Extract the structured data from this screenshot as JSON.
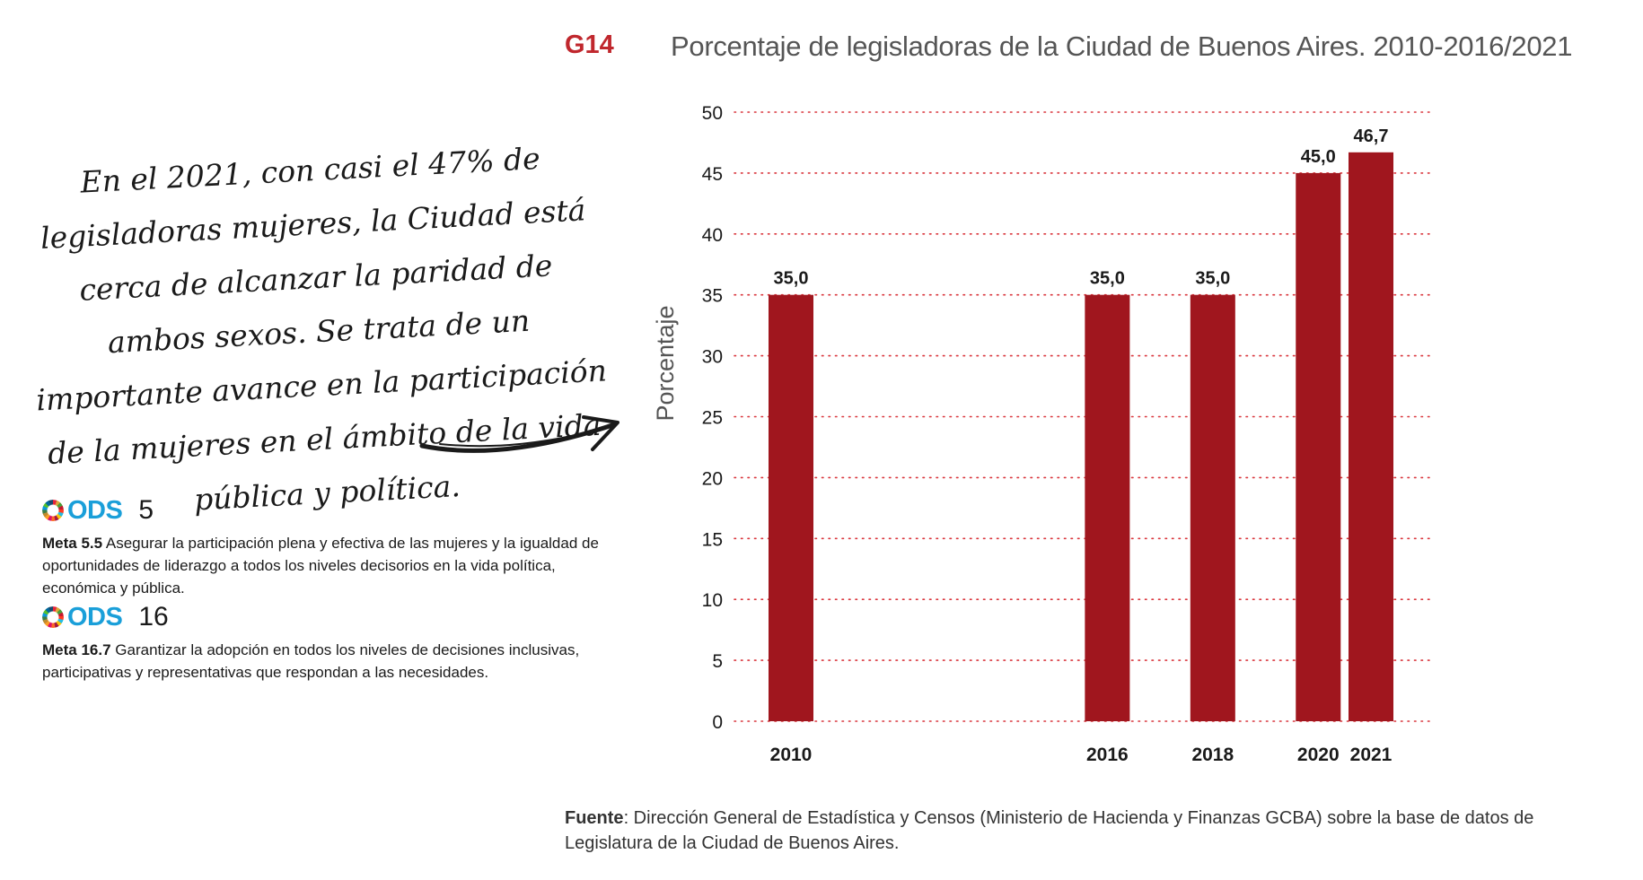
{
  "header": {
    "code": "G14",
    "title": "Porcentaje de legisladoras de la Ciudad de Buenos Aires. 2010-2016/2021"
  },
  "quote": "En el 2021, con casi el 47% de legisladoras mujeres, la Ciudad está cerca de alcanzar la paridad de ambos sexos. Se trata de un importante avance en la participación de la mujeres en el ámbito de la vida pública y política.",
  "ods": [
    {
      "label": "ODS",
      "number": "5",
      "meta_title": "Meta 5.5",
      "meta_text": "Asegurar la participación plena y efectiva de las mujeres y la igualdad de oportunidades de liderazgo a todos los niveles decisorios en la vida política, económica y pública."
    },
    {
      "label": "ODS",
      "number": "16",
      "meta_title": "Meta 16.7",
      "meta_text": "Garantizar la adopción en todos los niveles de decisiones inclusivas, participativas y representativas que respondan a las necesidades."
    }
  ],
  "source": {
    "label": "Fuente",
    "text": ": Dirección General de Estadística y Censos (Ministerio de Hacienda y Finanzas GCBA) sobre la base de datos de Legislatura de la Ciudad de Buenos Aires."
  },
  "colors": {
    "bar": "#a0161e",
    "grid": "#d9343b",
    "code": "#c0272d"
  },
  "chart_data": {
    "type": "bar",
    "title": "Porcentaje de legisladoras de la Ciudad de Buenos Aires. 2010-2016/2021",
    "xlabel": "",
    "ylabel": "Porcentaje",
    "ylim": [
      0,
      50
    ],
    "yticks": [
      0,
      5,
      10,
      15,
      20,
      25,
      30,
      35,
      40,
      45,
      50
    ],
    "grid": true,
    "categories": [
      "2010",
      "2016",
      "2018",
      "2020",
      "2021"
    ],
    "x_years": [
      2010,
      2016,
      2018,
      2020,
      2021
    ],
    "values": [
      35.0,
      35.0,
      35.0,
      45.0,
      46.7
    ],
    "value_labels": [
      "35,0",
      "35,0",
      "35,0",
      "45,0",
      "46,7"
    ]
  }
}
